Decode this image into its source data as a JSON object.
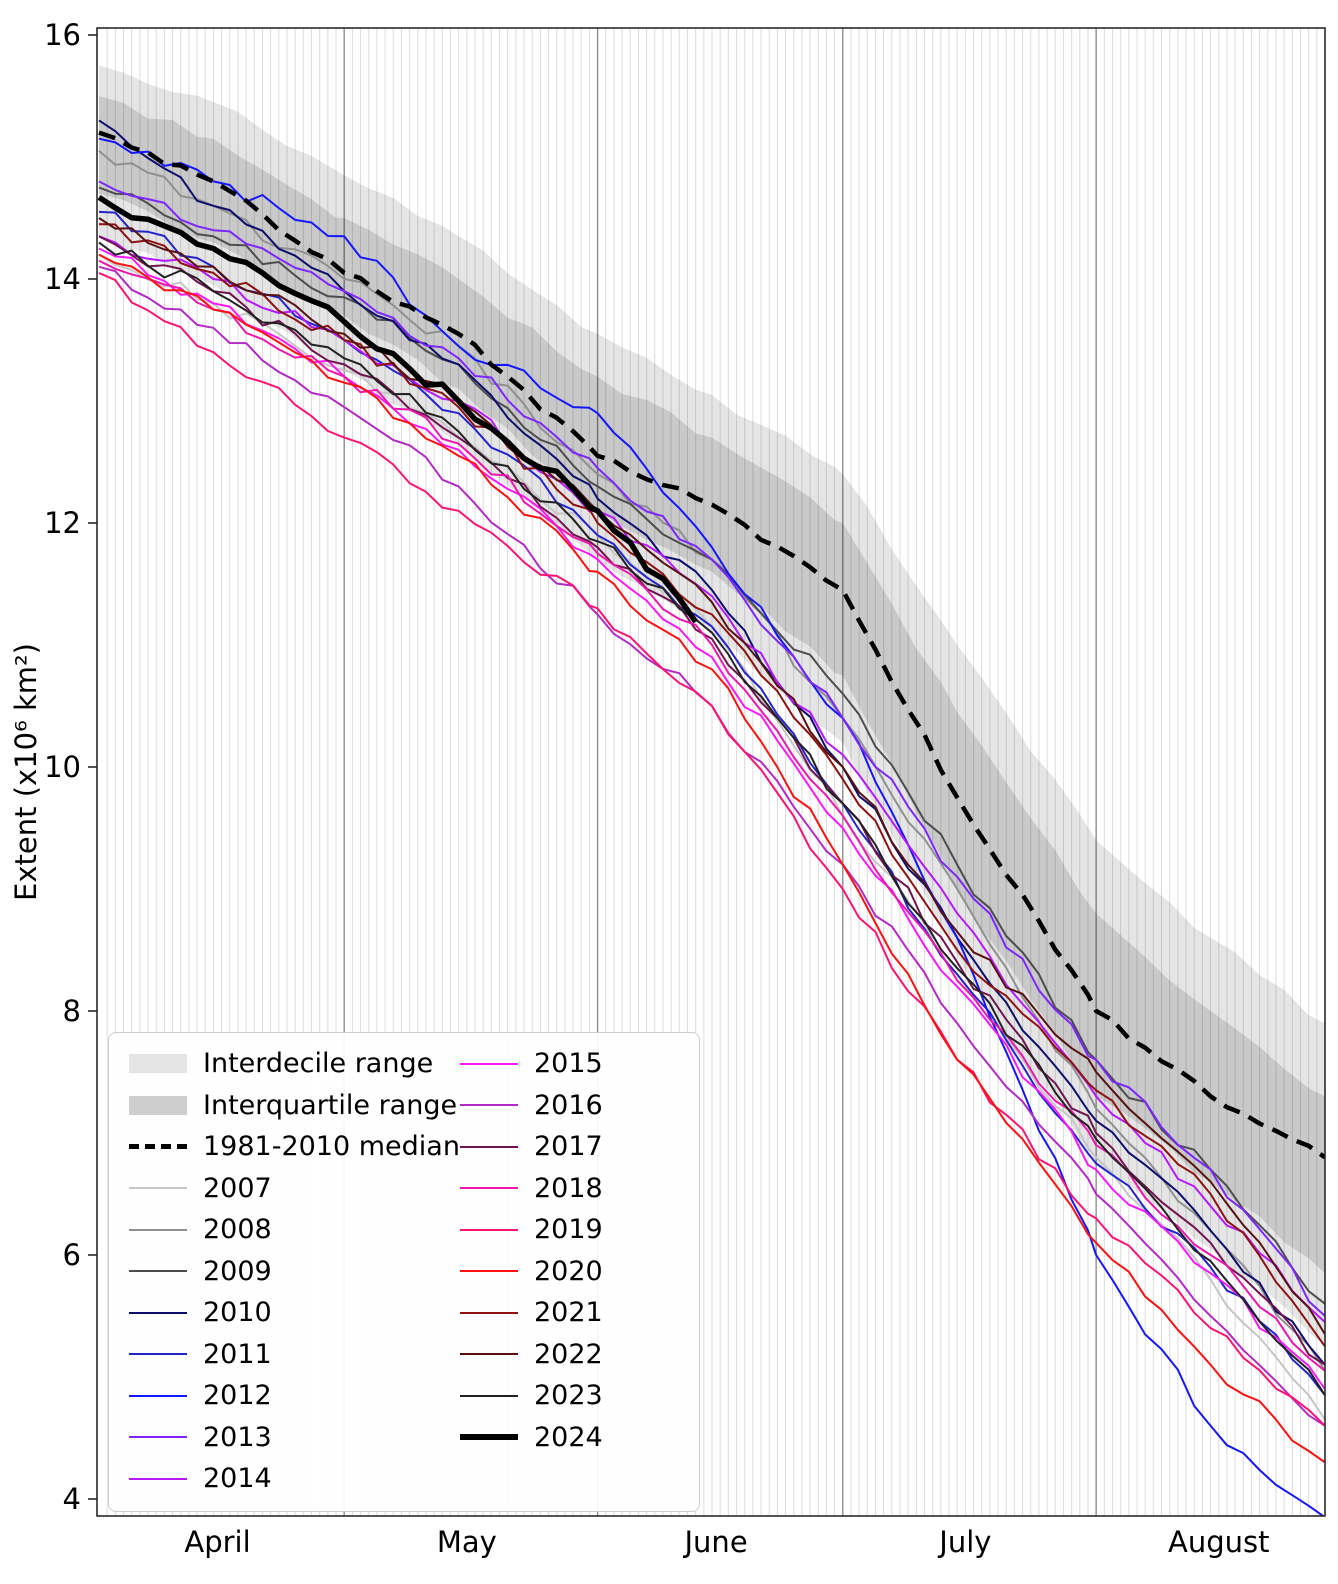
{
  "figure_title": "",
  "axes": {
    "ylabel": "Extent (x10⁶ km²)",
    "y_ticks": [
      16,
      14,
      12,
      10,
      8,
      6,
      4
    ],
    "x_month_labels": [
      {
        "label": "April",
        "center_day": 14.5
      },
      {
        "label": "May",
        "center_day": 45
      },
      {
        "label": "June",
        "center_day": 75.5
      },
      {
        "label": "July",
        "center_day": 106
      },
      {
        "label": "August",
        "center_day": 137
      }
    ],
    "month_boundary_days": [
      30,
      61,
      91,
      122
    ],
    "total_days": 150
  },
  "legend": {
    "column1": [
      {
        "label": "Interdecile range",
        "swatch": "patch",
        "color": "#e4e4e4"
      },
      {
        "label": "Interquartile range",
        "swatch": "patch",
        "color": "#cecece"
      },
      {
        "label": "1981-2010 median",
        "swatch": "dashed",
        "color": "#000000",
        "weight": 5
      },
      {
        "label": "2007",
        "swatch": "line",
        "color": "#c6c6c6",
        "weight": 2
      },
      {
        "label": "2008",
        "swatch": "line",
        "color": "#909090",
        "weight": 2
      },
      {
        "label": "2009",
        "swatch": "line",
        "color": "#4d4d4d",
        "weight": 2
      },
      {
        "label": "2010",
        "swatch": "line",
        "color": "#0d0d6b",
        "weight": 2
      },
      {
        "label": "2011",
        "swatch": "line",
        "color": "#2424cd",
        "weight": 2
      },
      {
        "label": "2012",
        "swatch": "line",
        "color": "#1616ff",
        "weight": 2
      },
      {
        "label": "2013",
        "swatch": "line",
        "color": "#7d26ff",
        "weight": 2
      },
      {
        "label": "2014",
        "swatch": "line",
        "color": "#b619ff",
        "weight": 2
      }
    ],
    "column2": [
      {
        "label": "2015",
        "swatch": "line",
        "color": "#fb19fb",
        "weight": 2
      },
      {
        "label": "2016",
        "swatch": "line",
        "color": "#b22bc4",
        "weight": 2
      },
      {
        "label": "2017",
        "swatch": "line",
        "color": "#701450",
        "weight": 2
      },
      {
        "label": "2018",
        "swatch": "line",
        "color": "#ee17ad",
        "weight": 2
      },
      {
        "label": "2019",
        "swatch": "line",
        "color": "#ff1472",
        "weight": 2
      },
      {
        "label": "2020",
        "swatch": "line",
        "color": "#fe1211",
        "weight": 2
      },
      {
        "label": "2021",
        "swatch": "line",
        "color": "#8e1111",
        "weight": 2
      },
      {
        "label": "2022",
        "swatch": "line",
        "color": "#571111",
        "weight": 2
      },
      {
        "label": "2023",
        "swatch": "line",
        "color": "#212121",
        "weight": 2
      },
      {
        "label": "2024",
        "swatch": "line",
        "color": "#000000",
        "weight": 6
      }
    ]
  },
  "chart_data": {
    "type": "line",
    "title": "",
    "ylabel": "Extent (x10⁶ km²)",
    "ylim": [
      4,
      16
    ],
    "grid": "vertical-daily",
    "legend_position": "lower-left",
    "x_unit": "days since April 1",
    "x_range_labels": [
      "April 1",
      "August 29"
    ],
    "sample_days": [
      0,
      14,
      30,
      44,
      61,
      75,
      91,
      105,
      122,
      136,
      150
    ],
    "bands": [
      {
        "name": "Interdecile range",
        "upper": [
          15.75,
          15.45,
          14.85,
          14.35,
          13.55,
          13.05,
          12.4,
          11.0,
          9.4,
          8.6,
          7.9
        ],
        "lower": [
          14.35,
          13.95,
          13.25,
          12.65,
          11.7,
          11.1,
          10.2,
          8.45,
          6.75,
          6.05,
          5.25
        ],
        "fill": "rgba(0,0,0,0.10)"
      },
      {
        "name": "Interquartile range",
        "upper": [
          15.5,
          15.15,
          14.5,
          14.0,
          13.2,
          12.7,
          12.0,
          10.45,
          8.8,
          8.0,
          7.3
        ],
        "lower": [
          14.7,
          14.3,
          13.7,
          13.1,
          12.1,
          11.6,
          10.75,
          9.0,
          7.3,
          6.6,
          5.85
        ],
        "fill": "rgba(0,0,0,0.12)"
      }
    ],
    "median": {
      "name": "1981-2010 median",
      "style": "dashed",
      "color": "#000000",
      "width": 4.5,
      "values": [
        15.2,
        14.8,
        14.05,
        13.55,
        12.55,
        12.15,
        11.45,
        9.75,
        8.0,
        7.3,
        6.8
      ]
    },
    "series": [
      {
        "name": "2007",
        "color": "#c6c6c6",
        "width": 2,
        "values": [
          14.2,
          13.8,
          13.25,
          12.7,
          11.9,
          11.15,
          9.6,
          8.3,
          6.8,
          5.8,
          4.65
        ]
      },
      {
        "name": "2008",
        "color": "#909090",
        "width": 2,
        "values": [
          15.05,
          14.6,
          14.0,
          13.45,
          12.4,
          11.7,
          10.4,
          9.0,
          7.2,
          6.2,
          5.05
        ]
      },
      {
        "name": "2009",
        "color": "#4d4d4d",
        "width": 2,
        "values": [
          14.75,
          14.35,
          13.85,
          13.3,
          12.3,
          11.7,
          10.6,
          9.2,
          7.6,
          6.7,
          5.6
        ]
      },
      {
        "name": "2010",
        "color": "#0d0d6b",
        "width": 2,
        "values": [
          15.3,
          14.6,
          13.9,
          13.3,
          12.2,
          11.45,
          10.0,
          8.6,
          7.1,
          6.2,
          5.1
        ]
      },
      {
        "name": "2011",
        "color": "#2424cd",
        "width": 2,
        "values": [
          14.55,
          14.1,
          13.5,
          12.9,
          11.9,
          11.15,
          9.7,
          8.3,
          6.75,
          5.9,
          4.85
        ]
      },
      {
        "name": "2012",
        "color": "#1616ff",
        "width": 2,
        "values": [
          15.15,
          14.8,
          14.35,
          13.45,
          12.9,
          11.8,
          10.4,
          8.6,
          6.0,
          4.6,
          3.85
        ]
      },
      {
        "name": "2013",
        "color": "#7d26ff",
        "width": 2,
        "values": [
          14.8,
          14.4,
          13.9,
          13.35,
          12.45,
          11.7,
          10.4,
          9.1,
          7.6,
          6.7,
          5.5
        ]
      },
      {
        "name": "2014",
        "color": "#b619ff",
        "width": 2,
        "values": [
          14.35,
          14.0,
          13.5,
          13.0,
          12.1,
          11.4,
          10.1,
          8.8,
          7.3,
          6.4,
          5.45
        ]
      },
      {
        "name": "2015",
        "color": "#fb19fb",
        "width": 2,
        "values": [
          14.25,
          13.8,
          13.2,
          12.6,
          11.7,
          10.9,
          9.5,
          8.2,
          6.7,
          5.85,
          4.9
        ]
      },
      {
        "name": "2016",
        "color": "#b22bc4",
        "width": 2,
        "values": [
          14.1,
          13.6,
          12.95,
          12.3,
          11.25,
          10.5,
          9.2,
          7.9,
          6.5,
          5.5,
          4.6
        ]
      },
      {
        "name": "2017",
        "color": "#701450",
        "width": 2,
        "values": [
          14.35,
          13.9,
          13.3,
          12.7,
          11.8,
          11.05,
          9.7,
          8.4,
          7.0,
          6.1,
          5.1
        ]
      },
      {
        "name": "2018",
        "color": "#ee17ad",
        "width": 2,
        "values": [
          14.15,
          13.75,
          13.2,
          12.65,
          11.75,
          11.0,
          9.6,
          8.25,
          6.9,
          6.0,
          5.05
        ]
      },
      {
        "name": "2019",
        "color": "#ff1472",
        "width": 2,
        "values": [
          14.05,
          13.4,
          12.7,
          12.1,
          11.3,
          10.5,
          9.0,
          7.6,
          6.3,
          5.4,
          4.6
        ]
      },
      {
        "name": "2020",
        "color": "#fe1211",
        "width": 2,
        "values": [
          14.2,
          13.75,
          13.15,
          12.55,
          11.6,
          10.8,
          9.2,
          7.6,
          6.1,
          5.1,
          4.3
        ]
      },
      {
        "name": "2021",
        "color": "#8e1111",
        "width": 2,
        "values": [
          14.45,
          14.05,
          13.5,
          12.95,
          12.0,
          11.25,
          9.9,
          8.5,
          7.35,
          6.5,
          5.25
        ]
      },
      {
        "name": "2022",
        "color": "#571111",
        "width": 2,
        "values": [
          14.5,
          14.1,
          13.55,
          13.0,
          12.1,
          11.35,
          10.0,
          8.65,
          7.5,
          6.6,
          5.35
        ]
      },
      {
        "name": "2023",
        "color": "#212121",
        "width": 2,
        "values": [
          14.3,
          13.9,
          13.35,
          12.75,
          11.85,
          11.1,
          9.7,
          8.35,
          6.95,
          5.95,
          4.85
        ]
      },
      {
        "name": "2024",
        "color": "#000000",
        "width": 5.5,
        "days": [
          0,
          14,
          30,
          44,
          61,
          73
        ],
        "values": [
          14.67,
          14.25,
          13.65,
          13.0,
          12.1,
          11.19
        ]
      }
    ]
  }
}
